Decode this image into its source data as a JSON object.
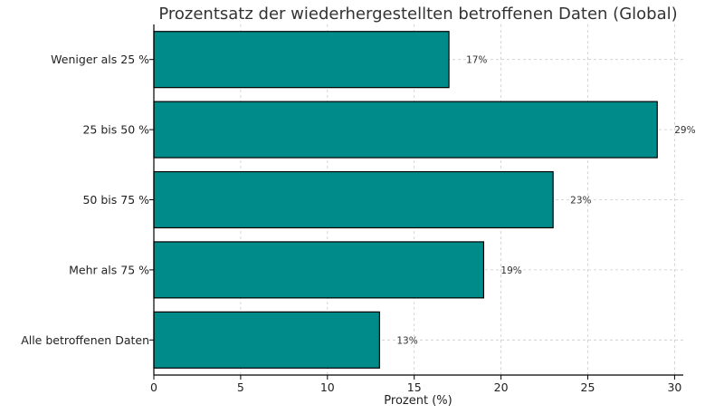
{
  "chart_data": {
    "type": "bar",
    "orientation": "horizontal",
    "title": "Prozentsatz der wiederhergestellten betroffenen Daten (Global)",
    "xlabel": "Prozent (%)",
    "ylabel": "",
    "categories": [
      "Weniger als 25 %",
      "25 bis 50 %",
      "50 bis 75 %",
      "Mehr als 75 %",
      "Alle betroffenen Daten"
    ],
    "values": [
      17,
      29,
      23,
      19,
      13
    ],
    "value_labels": [
      "17%",
      "29%",
      "23%",
      "19%",
      "13%"
    ],
    "xlim": [
      0,
      30.5
    ],
    "x_ticks": [
      0,
      5,
      10,
      15,
      20,
      25,
      30
    ],
    "grid": true,
    "bar_color": "#008b8b",
    "bar_edge_color": "#000000"
  }
}
